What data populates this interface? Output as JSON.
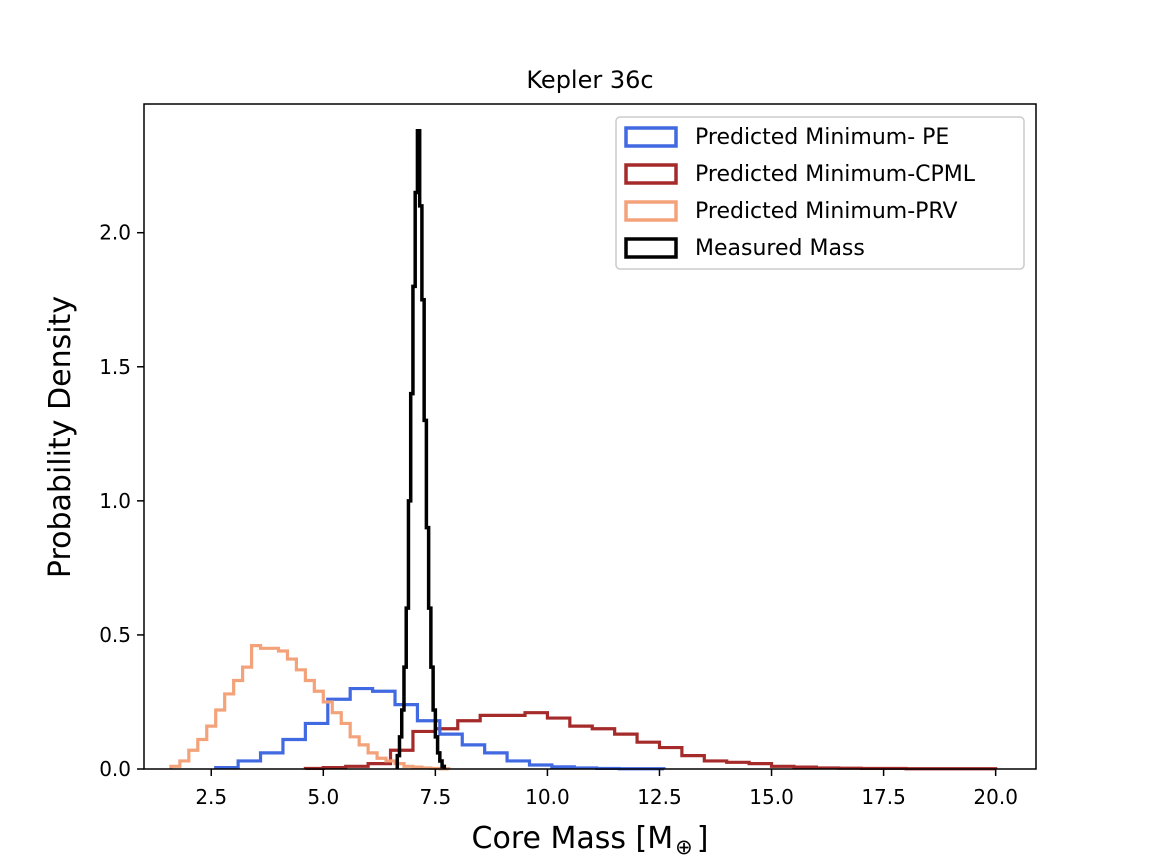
{
  "chart_data": {
    "type": "histogram",
    "title": "Kepler 36c",
    "xlabel_main": "Core Mass [M",
    "xlabel_symbol": "⊕",
    "xlabel_close": "]",
    "ylabel": "Probability Density",
    "xlim": [
      1.0,
      20.9
    ],
    "ylim": [
      0,
      2.48
    ],
    "xticks": [
      2.5,
      5.0,
      7.5,
      10.0,
      12.5,
      15.0,
      17.5,
      20.0
    ],
    "xtick_labels": [
      "2.5",
      "5.0",
      "7.5",
      "10.0",
      "12.5",
      "15.0",
      "17.5",
      "20.0"
    ],
    "yticks": [
      0.0,
      0.5,
      1.0,
      1.5,
      2.0
    ],
    "ytick_labels": [
      "0.0",
      "0.5",
      "1.0",
      "1.5",
      "2.0"
    ],
    "legend_position": "top-right",
    "series": [
      {
        "name": "Predicted Minimum-CPML",
        "color": "#a52a2a",
        "bins": [
          [
            4.6,
            5.0,
            0.002
          ],
          [
            5.0,
            5.5,
            0.005
          ],
          [
            5.5,
            6.0,
            0.01
          ],
          [
            6.0,
            6.5,
            0.02
          ],
          [
            6.5,
            7.0,
            0.07
          ],
          [
            7.0,
            7.5,
            0.14
          ],
          [
            7.5,
            8.0,
            0.15
          ],
          [
            8.0,
            8.5,
            0.18
          ],
          [
            8.5,
            9.0,
            0.2
          ],
          [
            9.0,
            9.5,
            0.2
          ],
          [
            9.5,
            10.0,
            0.21
          ],
          [
            10.0,
            10.5,
            0.19
          ],
          [
            10.5,
            11.0,
            0.16
          ],
          [
            11.0,
            11.5,
            0.15
          ],
          [
            11.5,
            12.0,
            0.13
          ],
          [
            12.0,
            12.5,
            0.1
          ],
          [
            12.5,
            13.0,
            0.08
          ],
          [
            13.0,
            13.5,
            0.05
          ],
          [
            13.5,
            14.0,
            0.03
          ],
          [
            14.0,
            14.5,
            0.025
          ],
          [
            14.5,
            15.0,
            0.02
          ],
          [
            15.0,
            15.5,
            0.01
          ],
          [
            15.5,
            16.0,
            0.007
          ],
          [
            16.0,
            16.5,
            0.004
          ],
          [
            16.5,
            17.0,
            0.003
          ],
          [
            17.0,
            17.5,
            0.002
          ],
          [
            17.5,
            18.0,
            0.002
          ],
          [
            18.0,
            18.5,
            0.001
          ],
          [
            18.5,
            19.0,
            0.001
          ],
          [
            19.0,
            19.5,
            0.001
          ],
          [
            19.5,
            20.0,
            0.001
          ]
        ]
      },
      {
        "name": "Predicted Minimum- PE",
        "color": "#4169e1",
        "bins": [
          [
            2.6,
            3.1,
            0.005
          ],
          [
            3.1,
            3.6,
            0.03
          ],
          [
            3.6,
            4.1,
            0.06
          ],
          [
            4.1,
            4.6,
            0.11
          ],
          [
            4.6,
            5.1,
            0.17
          ],
          [
            5.1,
            5.6,
            0.26
          ],
          [
            5.6,
            6.1,
            0.3
          ],
          [
            6.1,
            6.6,
            0.29
          ],
          [
            6.6,
            7.1,
            0.24
          ],
          [
            7.1,
            7.6,
            0.18
          ],
          [
            7.6,
            8.1,
            0.13
          ],
          [
            8.1,
            8.6,
            0.09
          ],
          [
            8.6,
            9.1,
            0.06
          ],
          [
            9.1,
            9.6,
            0.03
          ],
          [
            9.6,
            10.1,
            0.015
          ],
          [
            10.1,
            10.6,
            0.008
          ],
          [
            10.6,
            11.1,
            0.004
          ],
          [
            11.1,
            11.6,
            0.002
          ],
          [
            11.6,
            12.1,
            0.001
          ],
          [
            12.1,
            12.6,
            0.001
          ]
        ]
      },
      {
        "name": "Predicted Minimum-PRV",
        "color": "#f4a27a",
        "bins": [
          [
            1.6,
            1.8,
            0.01
          ],
          [
            1.8,
            2.0,
            0.03
          ],
          [
            2.0,
            2.2,
            0.07
          ],
          [
            2.2,
            2.4,
            0.11
          ],
          [
            2.4,
            2.6,
            0.16
          ],
          [
            2.6,
            2.8,
            0.22
          ],
          [
            2.8,
            3.0,
            0.28
          ],
          [
            3.0,
            3.2,
            0.33
          ],
          [
            3.2,
            3.4,
            0.38
          ],
          [
            3.4,
            3.6,
            0.46
          ],
          [
            3.6,
            3.8,
            0.45
          ],
          [
            3.8,
            4.0,
            0.45
          ],
          [
            4.0,
            4.2,
            0.44
          ],
          [
            4.2,
            4.4,
            0.41
          ],
          [
            4.4,
            4.6,
            0.37
          ],
          [
            4.6,
            4.8,
            0.33
          ],
          [
            4.8,
            5.0,
            0.29
          ],
          [
            5.0,
            5.2,
            0.25
          ],
          [
            5.2,
            5.4,
            0.21
          ],
          [
            5.4,
            5.6,
            0.17
          ],
          [
            5.6,
            5.8,
            0.12
          ],
          [
            5.8,
            6.0,
            0.09
          ],
          [
            6.0,
            6.2,
            0.06
          ],
          [
            6.2,
            6.4,
            0.04
          ],
          [
            6.4,
            6.6,
            0.03
          ],
          [
            6.6,
            6.8,
            0.02
          ],
          [
            6.8,
            7.0,
            0.01
          ],
          [
            7.0,
            7.2,
            0.007
          ],
          [
            7.2,
            7.4,
            0.004
          ],
          [
            7.4,
            7.6,
            0.002
          ],
          [
            7.6,
            7.8,
            0.001
          ]
        ]
      },
      {
        "name": "Measured Mass",
        "color": "#000000",
        "bins": [
          [
            6.65,
            6.7,
            0.05
          ],
          [
            6.7,
            6.75,
            0.12
          ],
          [
            6.75,
            6.8,
            0.22
          ],
          [
            6.8,
            6.85,
            0.38
          ],
          [
            6.85,
            6.9,
            0.6
          ],
          [
            6.9,
            6.95,
            1.0
          ],
          [
            6.95,
            7.0,
            1.4
          ],
          [
            7.0,
            7.05,
            1.8
          ],
          [
            7.05,
            7.1,
            2.15
          ],
          [
            7.1,
            7.15,
            2.38
          ],
          [
            7.15,
            7.2,
            2.1
          ],
          [
            7.2,
            7.25,
            1.75
          ],
          [
            7.25,
            7.3,
            1.3
          ],
          [
            7.3,
            7.35,
            0.9
          ],
          [
            7.35,
            7.4,
            0.6
          ],
          [
            7.4,
            7.45,
            0.38
          ],
          [
            7.45,
            7.5,
            0.22
          ],
          [
            7.5,
            7.55,
            0.12
          ],
          [
            7.55,
            7.6,
            0.06
          ],
          [
            7.6,
            7.65,
            0.03
          ],
          [
            7.65,
            7.7,
            0.01
          ]
        ]
      }
    ],
    "legend_order": [
      "Predicted Minimum- PE",
      "Predicted Minimum-CPML",
      "Predicted Minimum-PRV",
      "Measured Mass"
    ]
  }
}
